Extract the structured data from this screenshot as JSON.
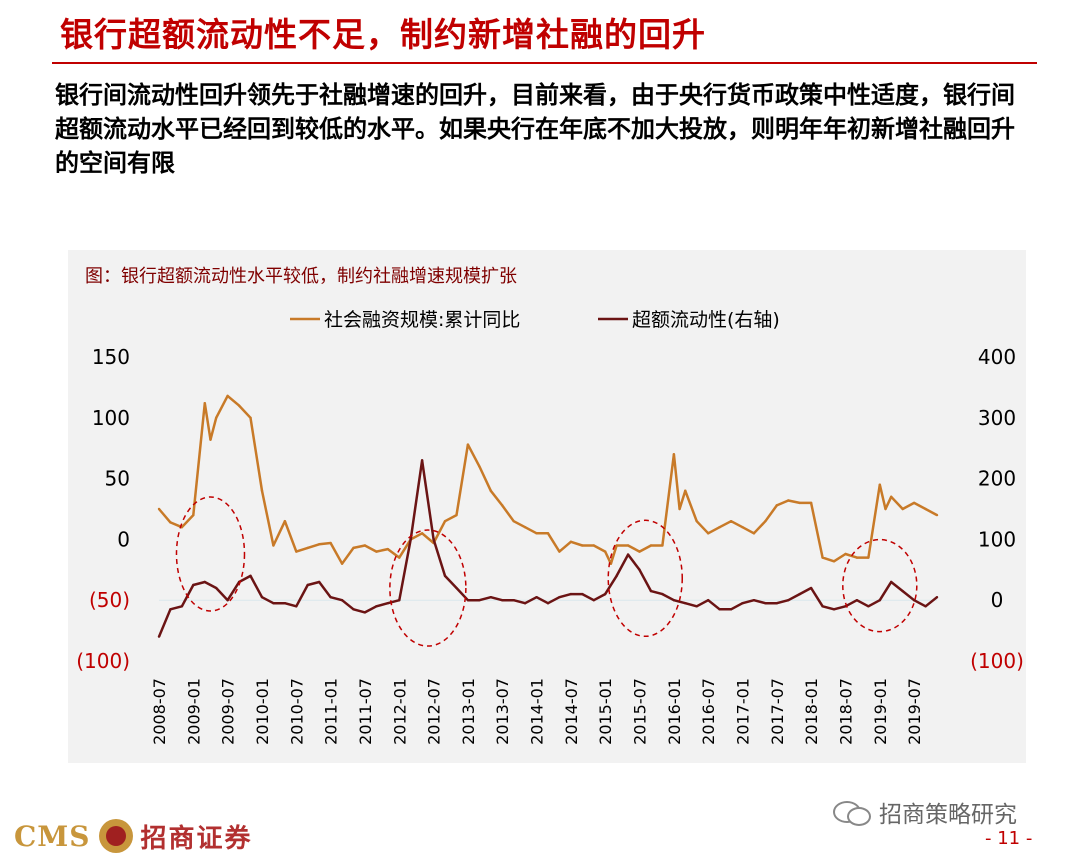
{
  "slide": {
    "title": "银行超额流动性不足，制约新增社融的回升",
    "body": "银行间流动性回升领先于社融增速的回升，目前来看，由于央行货币政策中性适度，银行间超额流动水平已经回到较低的水平。如果央行在年底不加大投放，则明年年初新增社融回升的空间有限"
  },
  "footer": {
    "cms_text": "CMS",
    "brand_cn": "招商证券",
    "watermark": "招商策略研究",
    "page_number": "- 11 -"
  },
  "chart_data": {
    "type": "line",
    "title": "图：银行超额流动性水平较低，制约社融增速规模扩张",
    "x_tick_labels": [
      "2008-07",
      "2009-01",
      "2009-07",
      "2010-01",
      "2010-07",
      "2011-01",
      "2011-07",
      "2012-01",
      "2012-07",
      "2013-01",
      "2013-07",
      "2014-01",
      "2014-07",
      "2015-01",
      "2015-07",
      "2016-01",
      "2016-07",
      "2017-01",
      "2017-07",
      "2018-01",
      "2018-07",
      "2019-01",
      "2019-07"
    ],
    "y_left": {
      "ticks": [
        150,
        100,
        50,
        0,
        -50,
        -100
      ],
      "tick_labels": [
        "150",
        "100",
        "50",
        "0",
        "(50)",
        "(100)"
      ],
      "lim": [
        -100,
        150
      ]
    },
    "y_right": {
      "ticks": [
        400,
        300,
        200,
        100,
        0,
        -100
      ],
      "tick_labels": [
        "400",
        "300",
        "200",
        "100",
        "0",
        "(100)"
      ],
      "lim": [
        -100,
        400
      ]
    },
    "negative_label_color": "#c00000",
    "grid": false,
    "legend_position": "top",
    "series": [
      {
        "name": "社会融资规模:累计同比",
        "axis": "left",
        "color": "#c87a28",
        "x": [
          "2008-07",
          "2008-09",
          "2008-11",
          "2009-01",
          "2009-03",
          "2009-04",
          "2009-05",
          "2009-07",
          "2009-09",
          "2009-11",
          "2010-01",
          "2010-03",
          "2010-05",
          "2010-07",
          "2010-09",
          "2010-11",
          "2011-01",
          "2011-03",
          "2011-05",
          "2011-07",
          "2011-09",
          "2011-11",
          "2012-01",
          "2012-03",
          "2012-05",
          "2012-07",
          "2012-09",
          "2012-11",
          "2013-01",
          "2013-03",
          "2013-05",
          "2013-07",
          "2013-09",
          "2013-11",
          "2014-01",
          "2014-03",
          "2014-05",
          "2014-07",
          "2014-09",
          "2014-11",
          "2015-01",
          "2015-02",
          "2015-03",
          "2015-05",
          "2015-07",
          "2015-09",
          "2015-11",
          "2016-01",
          "2016-02",
          "2016-03",
          "2016-05",
          "2016-07",
          "2016-09",
          "2016-11",
          "2017-01",
          "2017-03",
          "2017-05",
          "2017-07",
          "2017-09",
          "2017-11",
          "2018-01",
          "2018-03",
          "2018-05",
          "2018-07",
          "2018-09",
          "2018-11",
          "2019-01",
          "2019-02",
          "2019-03",
          "2019-05",
          "2019-07",
          "2019-09",
          "2019-11"
        ],
        "values": [
          25,
          14,
          10,
          20,
          112,
          82,
          100,
          118,
          110,
          100,
          40,
          -5,
          15,
          -10,
          -7,
          -4,
          -3,
          -20,
          -7,
          -5,
          -10,
          -8,
          -15,
          0,
          5,
          -3,
          15,
          20,
          78,
          60,
          40,
          28,
          15,
          10,
          5,
          5,
          -10,
          -2,
          -5,
          -5,
          -10,
          -20,
          -5,
          -5,
          -10,
          -5,
          -5,
          70,
          25,
          40,
          15,
          5,
          10,
          15,
          10,
          5,
          15,
          28,
          32,
          30,
          30,
          -15,
          -18,
          -12,
          -15,
          -15,
          45,
          25,
          35,
          25,
          30,
          25,
          20
        ]
      },
      {
        "name": "超额流动性(右轴)",
        "axis": "right",
        "color": "#6b1414",
        "x": [
          "2008-07",
          "2008-09",
          "2008-11",
          "2009-01",
          "2009-03",
          "2009-05",
          "2009-07",
          "2009-09",
          "2009-11",
          "2010-01",
          "2010-03",
          "2010-05",
          "2010-07",
          "2010-09",
          "2010-11",
          "2011-01",
          "2011-03",
          "2011-05",
          "2011-07",
          "2011-09",
          "2011-11",
          "2012-01",
          "2012-03",
          "2012-05",
          "2012-07",
          "2012-09",
          "2012-11",
          "2013-01",
          "2013-03",
          "2013-05",
          "2013-07",
          "2013-09",
          "2013-11",
          "2014-01",
          "2014-03",
          "2014-05",
          "2014-07",
          "2014-09",
          "2014-11",
          "2015-01",
          "2015-03",
          "2015-05",
          "2015-07",
          "2015-09",
          "2015-11",
          "2016-01",
          "2016-03",
          "2016-05",
          "2016-07",
          "2016-09",
          "2016-11",
          "2017-01",
          "2017-03",
          "2017-05",
          "2017-07",
          "2017-09",
          "2017-11",
          "2018-01",
          "2018-03",
          "2018-05",
          "2018-07",
          "2018-09",
          "2018-11",
          "2019-01",
          "2019-03",
          "2019-05",
          "2019-07",
          "2019-09",
          "2019-11"
        ],
        "values": [
          -60,
          -15,
          -10,
          25,
          30,
          20,
          0,
          30,
          40,
          5,
          -5,
          -5,
          -10,
          25,
          30,
          5,
          0,
          -15,
          -20,
          -10,
          -5,
          0,
          100,
          230,
          100,
          40,
          20,
          0,
          0,
          5,
          0,
          0,
          -5,
          5,
          -5,
          5,
          10,
          10,
          0,
          10,
          40,
          75,
          50,
          15,
          10,
          0,
          -5,
          -10,
          0,
          -15,
          -15,
          -5,
          0,
          -5,
          -5,
          0,
          10,
          20,
          -10,
          -15,
          -10,
          0,
          -10,
          0,
          30,
          15,
          0,
          -10,
          5
        ]
      }
    ],
    "annotations": [
      {
        "type": "dashed-ellipse",
        "center_x": "2009-04",
        "center_y_left": -12,
        "color": "#c00000"
      },
      {
        "type": "dashed-ellipse",
        "center_x": "2012-06",
        "center_y_left": -40,
        "color": "#c00000"
      },
      {
        "type": "dashed-ellipse",
        "center_x": "2015-08",
        "center_y_left": -32,
        "color": "#c00000"
      },
      {
        "type": "dashed-ellipse",
        "center_x": "2019-01",
        "center_y_left": -38,
        "color": "#c00000"
      }
    ]
  }
}
